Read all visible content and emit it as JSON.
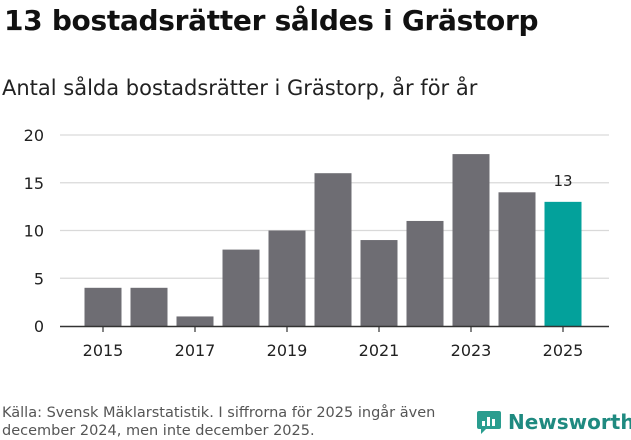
{
  "title": "13 bostadsrätter såldes i Grästorp",
  "subtitle": "Antal sålda bostadsrätter i Grästorp, år för år",
  "source": "Källa: Svensk Mäklarstatistik. I siffrorna för 2025 ingår även december 2024, men inte december 2025.",
  "brand": {
    "name": "Newsworthy",
    "icon": "newsworthy-logo-icon"
  },
  "colors": {
    "bar": "#6e6d73",
    "highlight": "#03a19b",
    "grid": "#d9d9d9",
    "axis": "#333333"
  },
  "chart_data": {
    "type": "bar",
    "title": "Antal sålda bostadsrätter i Grästorp, år för år",
    "categories": [
      "2015",
      "2016",
      "2017",
      "2018",
      "2019",
      "2020",
      "2021",
      "2022",
      "2023",
      "2024",
      "2025"
    ],
    "values": [
      4,
      4,
      1,
      8,
      10,
      16,
      9,
      11,
      18,
      14,
      13
    ],
    "highlight_index": 10,
    "highlight_label": "13",
    "x_tick_labels": [
      "2015",
      "2017",
      "2019",
      "2021",
      "2023",
      "2025"
    ],
    "y_ticks": [
      0,
      5,
      10,
      15,
      20
    ],
    "ylim": [
      0,
      20
    ],
    "xlabel": "",
    "ylabel": "",
    "grid": true
  }
}
